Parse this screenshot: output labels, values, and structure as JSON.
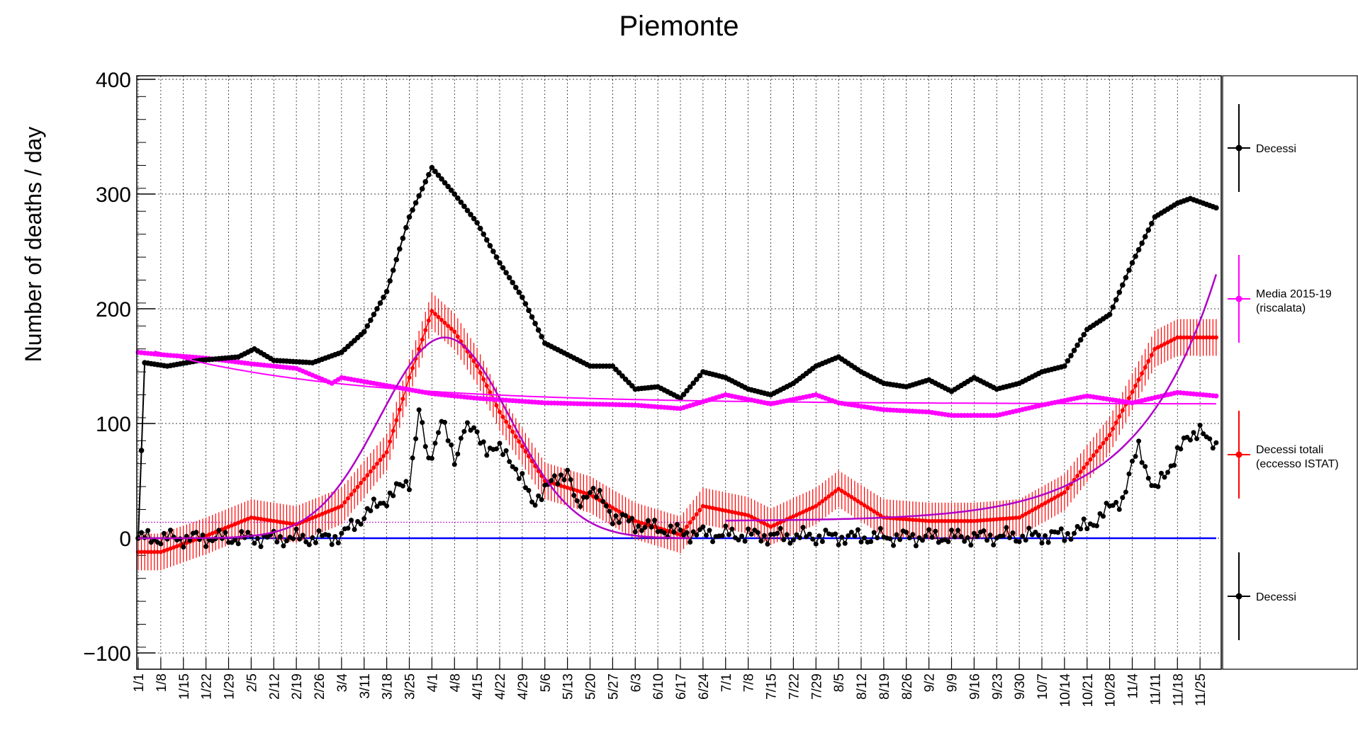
{
  "chart_data": {
    "type": "line",
    "title": "Piemonte",
    "ylabel": "Number of deaths / day",
    "xlabel": "",
    "ylim": [
      -115,
      400
    ],
    "y_ticks": [
      -100,
      0,
      100,
      200,
      300,
      400
    ],
    "grid": true,
    "legend_placement": "right",
    "x_tick_labels": [
      "1/1",
      "1/8",
      "1/15",
      "1/22",
      "1/29",
      "2/5",
      "2/12",
      "2/19",
      "2/26",
      "3/4",
      "3/11",
      "3/18",
      "3/25",
      "4/1",
      "4/8",
      "4/15",
      "4/22",
      "4/29",
      "5/6",
      "5/13",
      "5/20",
      "5/27",
      "6/3",
      "6/10",
      "6/17",
      "6/24",
      "7/1",
      "7/8",
      "7/15",
      "7/22",
      "7/29",
      "8/5",
      "8/12",
      "8/19",
      "8/26",
      "9/2",
      "9/9",
      "9/16",
      "9/23",
      "9/30",
      "10/7",
      "10/14",
      "10/21",
      "10/28",
      "11/4",
      "11/11",
      "11/18",
      "11/25"
    ],
    "legend": [
      {
        "label": "Decessi",
        "color": "#000000"
      },
      {
        "label": "Media 2015-19",
        "label2": "(riscalata)",
        "color": "#ff00ff"
      },
      {
        "label": "Decessi totali",
        "label2": "(eccesso ISTAT)",
        "color": "#ff0000"
      },
      {
        "label": "Decessi",
        "color": "#000000"
      }
    ],
    "series": [
      {
        "name": "Decessi",
        "color": "#000000",
        "x": [
          "1/1",
          "1/3",
          "1/10",
          "1/20",
          "2/1",
          "2/6",
          "2/12",
          "2/24",
          "3/4",
          "3/11",
          "3/18",
          "3/25",
          "4/1",
          "4/8",
          "4/15",
          "4/22",
          "4/29",
          "5/6",
          "5/13",
          "5/20",
          "5/27",
          "6/3",
          "6/10",
          "6/17",
          "6/24",
          "7/1",
          "7/8",
          "7/15",
          "7/22",
          "7/29",
          "8/5",
          "8/12",
          "8/19",
          "8/26",
          "9/2",
          "9/9",
          "9/16",
          "9/23",
          "9/30",
          "10/7",
          "10/14",
          "10/21",
          "10/28",
          "11/4",
          "11/11",
          "11/18",
          "11/22",
          "11/28",
          "11/30"
        ],
        "y": [
          0,
          153,
          150,
          155,
          158,
          165,
          155,
          153,
          162,
          180,
          215,
          280,
          323,
          300,
          275,
          240,
          210,
          170,
          160,
          150,
          150,
          130,
          132,
          122,
          145,
          140,
          130,
          125,
          135,
          150,
          158,
          145,
          135,
          132,
          138,
          128,
          140,
          130,
          135,
          145,
          150,
          182,
          195,
          240,
          280,
          292,
          296,
          290,
          288
        ]
      },
      {
        "name": "Media 2015-19",
        "color": "#ff00ff",
        "x": [
          "1/1",
          "1/8",
          "1/22",
          "2/5",
          "2/19",
          "3/1",
          "3/4",
          "3/18",
          "4/1",
          "4/15",
          "5/6",
          "6/3",
          "6/17",
          "7/1",
          "7/15",
          "7/29",
          "8/5",
          "8/19",
          "9/2",
          "9/9",
          "9/23",
          "10/7",
          "10/21",
          "11/4",
          "11/18",
          "11/30"
        ],
        "y": [
          162,
          160,
          157,
          152,
          148,
          135,
          140,
          133,
          126,
          122,
          118,
          116,
          113,
          125,
          117,
          125,
          118,
          112,
          110,
          107,
          107,
          116,
          124,
          118,
          127,
          124
        ]
      },
      {
        "name": "Decessi totali",
        "color": "#ff0000",
        "x": [
          "1/1",
          "1/8",
          "1/22",
          "2/5",
          "2/19",
          "3/4",
          "3/18",
          "3/25",
          "4/1",
          "4/8",
          "4/15",
          "4/22",
          "5/6",
          "5/20",
          "6/3",
          "6/17",
          "6/24",
          "7/8",
          "7/15",
          "7/29",
          "8/5",
          "8/19",
          "9/2",
          "9/16",
          "9/30",
          "10/14",
          "10/28",
          "11/11",
          "11/18",
          "11/30"
        ],
        "y": [
          -12,
          -12,
          2,
          18,
          12,
          28,
          75,
          140,
          198,
          180,
          150,
          110,
          50,
          38,
          15,
          3,
          28,
          20,
          10,
          28,
          43,
          18,
          15,
          15,
          18,
          40,
          90,
          165,
          175,
          175
        ]
      },
      {
        "name": "Decessi",
        "color": "#000000",
        "x": [
          "1/1",
          "2/26",
          "3/4",
          "3/11",
          "3/25",
          "3/28",
          "3/31",
          "4/4",
          "4/8",
          "4/11",
          "4/18",
          "4/25",
          "5/2",
          "5/13",
          "5/16",
          "5/20",
          "5/27",
          "6/3",
          "6/17",
          "6/24",
          "7/15",
          "8/5",
          "9/9",
          "10/7",
          "10/14",
          "10/21",
          "11/1",
          "11/6",
          "11/11",
          "11/18",
          "11/25",
          "11/28"
        ],
        "y": [
          0,
          0,
          2,
          20,
          50,
          110,
          65,
          105,
          65,
          100,
          80,
          72,
          32,
          60,
          25,
          45,
          20,
          12,
          5,
          4,
          2,
          1,
          1,
          2,
          3,
          10,
          35,
          80,
          40,
          75,
          98,
          80
        ]
      }
    ],
    "fit_curves": [
      {
        "name": "spring fit",
        "color": "#b000c8"
      },
      {
        "name": "autumn fit",
        "color": "#b000c8"
      },
      {
        "name": "baseline fit",
        "color": "#ff00ff"
      },
      {
        "name": "zero line",
        "color": "#0000ff"
      }
    ]
  }
}
